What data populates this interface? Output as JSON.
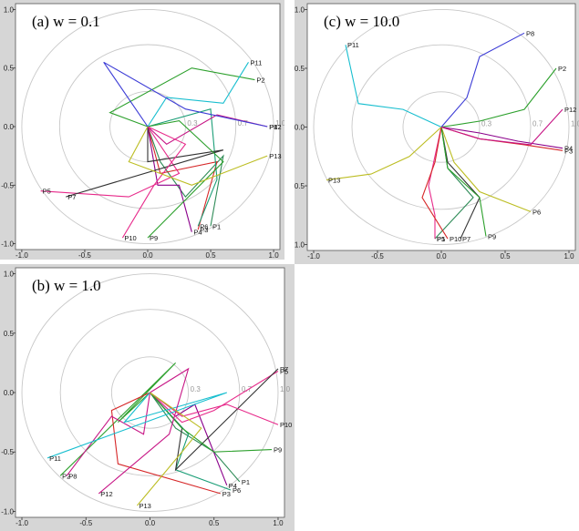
{
  "chart_data": [
    {
      "type": "line",
      "title": "(a) w = 0.1",
      "xticks": [
        "-1.0",
        "-0.5",
        "0.0",
        "0.5",
        "1.0"
      ],
      "yticks": [
        "1.0",
        "0.5",
        "0.0",
        "-0.5",
        "-1.0"
      ],
      "xlim": [
        -1.05,
        1.05
      ],
      "ylim": [
        -1.05,
        1.05
      ],
      "ring_labels": [
        "0.3",
        "0.7",
        "1.0"
      ],
      "ring_radii": [
        0.3,
        0.7,
        1.0
      ],
      "grid": false,
      "series": [
        {
          "label": "P1",
          "color": "#2e8b57",
          "points": [
            [
              0,
              0
            ],
            [
              0.1,
              -0.3
            ],
            [
              0.3,
              -0.6
            ],
            [
              0.6,
              -0.25
            ],
            [
              0.5,
              -0.85
            ]
          ]
        },
        {
          "label": "P2",
          "color": "#2ca02c",
          "points": [
            [
              0,
              0
            ],
            [
              -0.3,
              0.12
            ],
            [
              0.35,
              0.5
            ],
            [
              0.85,
              0.4
            ]
          ]
        },
        {
          "label": "P3",
          "color": "#d62728",
          "points": [
            [
              0,
              0
            ],
            [
              0.1,
              -0.4
            ],
            [
              0.55,
              -0.3
            ],
            [
              0.4,
              -0.88
            ]
          ]
        },
        {
          "label": "P4",
          "color": "#8b008b",
          "points": [
            [
              0,
              0
            ],
            [
              0.08,
              -0.5
            ],
            [
              0.25,
              -0.5
            ],
            [
              0.35,
              -0.9
            ]
          ]
        },
        {
          "label": "P5",
          "color": "#e7298a",
          "points": [
            [
              0,
              0
            ],
            [
              0.25,
              -0.4
            ],
            [
              -0.15,
              -0.6
            ],
            [
              -0.85,
              -0.55
            ]
          ]
        },
        {
          "label": "P6",
          "color": "#1b9e77",
          "points": [
            [
              0,
              0
            ],
            [
              0.5,
              0.15
            ],
            [
              0.55,
              -0.45
            ],
            [
              0.4,
              -0.85
            ]
          ]
        },
        {
          "label": "P7",
          "color": "#333333",
          "points": [
            [
              0,
              0
            ],
            [
              0,
              -0.3
            ],
            [
              0.6,
              -0.2
            ],
            [
              -0.65,
              -0.6
            ]
          ]
        },
        {
          "label": "P8",
          "color": "#c71585",
          "points": [
            [
              0,
              0
            ],
            [
              0.15,
              -0.15
            ],
            [
              0.55,
              0.1
            ],
            [
              0.95,
              0.0
            ]
          ]
        },
        {
          "label": "P9",
          "color": "#2ca02c",
          "points": [
            [
              0,
              0
            ],
            [
              0.25,
              0.05
            ],
            [
              0.6,
              -0.3
            ],
            [
              0.0,
              -0.95
            ]
          ]
        },
        {
          "label": "P10",
          "color": "#e7298a",
          "points": [
            [
              0,
              0
            ],
            [
              0.3,
              -0.15
            ],
            [
              0.05,
              -0.5
            ],
            [
              -0.2,
              -0.95
            ]
          ]
        },
        {
          "label": "P11",
          "color": "#17becf",
          "points": [
            [
              0,
              0
            ],
            [
              0.15,
              0.25
            ],
            [
              0.6,
              0.2
            ],
            [
              0.8,
              0.55
            ]
          ]
        },
        {
          "label": "P12",
          "color": "#3c3cd6",
          "points": [
            [
              0,
              0
            ],
            [
              -0.35,
              0.55
            ],
            [
              0.3,
              0.15
            ],
            [
              0.95,
              0.0
            ]
          ]
        },
        {
          "label": "P13",
          "color": "#bcbd22",
          "points": [
            [
              0,
              0
            ],
            [
              -0.15,
              -0.3
            ],
            [
              0.35,
              -0.5
            ],
            [
              0.95,
              -0.25
            ]
          ]
        }
      ]
    },
    {
      "type": "line",
      "title": "(b) w = 1.0",
      "xticks": [
        "-1.0",
        "-0.5",
        "0.0",
        "0.5",
        "1.0"
      ],
      "yticks": [
        "1.0",
        "0.5",
        "0.0",
        "-0.5",
        "-1.0"
      ],
      "xlim": [
        -1.05,
        1.05
      ],
      "ylim": [
        -1.05,
        1.05
      ],
      "ring_labels": [
        "0.3",
        "0.7",
        "1.0"
      ],
      "ring_radii": [
        0.3,
        0.7,
        1.0
      ],
      "grid": false,
      "series": [
        {
          "label": "P1",
          "color": "#2e8b57",
          "points": [
            [
              0,
              0
            ],
            [
              0.2,
              -0.3
            ],
            [
              0.5,
              -0.5
            ],
            [
              0.7,
              -0.75
            ]
          ]
        },
        {
          "label": "P2",
          "color": "#2ca02c",
          "points": [
            [
              0,
              0
            ],
            [
              -0.25,
              -0.25
            ],
            [
              0.2,
              0.25
            ],
            [
              -0.7,
              -0.7
            ]
          ]
        },
        {
          "label": "P3",
          "color": "#d62728",
          "points": [
            [
              0,
              0
            ],
            [
              -0.3,
              -0.15
            ],
            [
              -0.25,
              -0.6
            ],
            [
              0.55,
              -0.85
            ]
          ]
        },
        {
          "label": "P4",
          "color": "#8b008b",
          "points": [
            [
              0,
              0
            ],
            [
              0.2,
              -0.2
            ],
            [
              0.35,
              -0.1
            ],
            [
              0.6,
              -0.78
            ]
          ]
        },
        {
          "label": "P5",
          "color": "#e7298a",
          "points": [
            [
              0,
              0
            ],
            [
              0.25,
              -0.25
            ],
            [
              0.5,
              -0.15
            ],
            [
              1.0,
              0.18
            ]
          ]
        },
        {
          "label": "P6",
          "color": "#1b9e77",
          "points": [
            [
              0,
              0
            ],
            [
              0.3,
              -0.35
            ],
            [
              0.2,
              -0.65
            ],
            [
              0.63,
              -0.82
            ]
          ]
        },
        {
          "label": "P7",
          "color": "#333333",
          "points": [
            [
              0,
              0
            ],
            [
              0.25,
              -0.3
            ],
            [
              0.2,
              -0.65
            ],
            [
              1.0,
              0.2
            ]
          ]
        },
        {
          "label": "P8",
          "color": "#c71585",
          "points": [
            [
              0,
              0
            ],
            [
              -0.05,
              -0.35
            ],
            [
              -0.3,
              -0.2
            ],
            [
              -0.65,
              -0.7
            ]
          ]
        },
        {
          "label": "P9",
          "color": "#2ca02c",
          "points": [
            [
              0,
              0
            ],
            [
              0.25,
              -0.3
            ],
            [
              0.5,
              -0.5
            ],
            [
              0.95,
              -0.48
            ]
          ]
        },
        {
          "label": "P10",
          "color": "#e7298a",
          "points": [
            [
              0,
              0
            ],
            [
              0.25,
              -0.2
            ],
            [
              0.6,
              -0.1
            ],
            [
              1.0,
              -0.27
            ]
          ]
        },
        {
          "label": "P11",
          "color": "#17becf",
          "points": [
            [
              0,
              0
            ],
            [
              -0.2,
              -0.25
            ],
            [
              0.6,
              0.0
            ],
            [
              -0.8,
              -0.55
            ]
          ]
        },
        {
          "label": "P12",
          "color": "#c71585",
          "points": [
            [
              0,
              0
            ],
            [
              0.3,
              0.2
            ],
            [
              0.15,
              -0.35
            ],
            [
              -0.4,
              -0.85
            ]
          ]
        },
        {
          "label": "P13",
          "color": "#bcbd22",
          "points": [
            [
              0,
              0
            ],
            [
              0.4,
              -0.3
            ],
            [
              0.25,
              -0.5
            ],
            [
              -0.1,
              -0.95
            ]
          ]
        }
      ]
    },
    {
      "type": "line",
      "title": "(c) w = 10.0",
      "xticks": [
        "-1.0",
        "-0.5",
        "0.0",
        "0.5",
        "1.0"
      ],
      "yticks": [
        "1.0",
        "0.5",
        "0.0",
        "-0.5",
        "-1.0"
      ],
      "xlim": [
        -1.05,
        1.05
      ],
      "ylim": [
        -1.05,
        1.05
      ],
      "ring_labels": [
        "0.3",
        "0.7",
        "1.0"
      ],
      "ring_radii": [
        0.3,
        0.7,
        1.0
      ],
      "grid": false,
      "series": [
        {
          "label": "P1",
          "color": "#2e8b57",
          "points": [
            [
              0,
              0
            ],
            [
              0.05,
              -0.35
            ],
            [
              0.25,
              -0.6
            ],
            [
              -0.05,
              -0.95
            ]
          ]
        },
        {
          "label": "P2",
          "color": "#2ca02c",
          "points": [
            [
              0,
              0
            ],
            [
              0.3,
              0.05
            ],
            [
              0.65,
              0.15
            ],
            [
              0.9,
              0.5
            ]
          ]
        },
        {
          "label": "P3",
          "color": "#d62728",
          "points": [
            [
              0,
              0
            ],
            [
              0.3,
              -0.1
            ],
            [
              0.65,
              -0.15
            ],
            [
              0.95,
              -0.2
            ]
          ]
        },
        {
          "label": "P4",
          "color": "#8b008b",
          "points": [
            [
              0,
              0
            ],
            [
              0.3,
              -0.05
            ],
            [
              0.6,
              -0.12
            ],
            [
              0.95,
              -0.18
            ]
          ]
        },
        {
          "label": "P5",
          "color": "#e7298a",
          "points": [
            [
              0,
              0
            ],
            [
              -0.1,
              -0.5
            ],
            [
              -0.05,
              -0.75
            ],
            [
              -0.05,
              -0.95
            ]
          ]
        },
        {
          "label": "P6",
          "color": "#bcbd22",
          "points": [
            [
              0,
              0
            ],
            [
              0.1,
              -0.3
            ],
            [
              0.3,
              -0.55
            ],
            [
              0.7,
              -0.72
            ]
          ]
        },
        {
          "label": "P7",
          "color": "#333333",
          "points": [
            [
              0,
              0
            ],
            [
              0.05,
              -0.3
            ],
            [
              0.3,
              -0.6
            ],
            [
              0.15,
              -0.95
            ]
          ]
        },
        {
          "label": "P8",
          "color": "#3c3cd6",
          "points": [
            [
              0,
              0
            ],
            [
              0.2,
              0.25
            ],
            [
              0.3,
              0.6
            ],
            [
              0.65,
              0.8
            ]
          ]
        },
        {
          "label": "P9",
          "color": "#2ca02c",
          "points": [
            [
              0,
              0
            ],
            [
              0.05,
              -0.35
            ],
            [
              0.3,
              -0.6
            ],
            [
              0.35,
              -0.93
            ]
          ]
        },
        {
          "label": "P10",
          "color": "#d62728",
          "points": [
            [
              0,
              0
            ],
            [
              -0.05,
              -0.3
            ],
            [
              -0.15,
              -0.6
            ],
            [
              0.05,
              -0.95
            ]
          ]
        },
        {
          "label": "P11",
          "color": "#17becf",
          "points": [
            [
              0,
              0
            ],
            [
              -0.3,
              0.15
            ],
            [
              -0.65,
              0.2
            ],
            [
              -0.75,
              0.7
            ]
          ]
        },
        {
          "label": "P12",
          "color": "#c71585",
          "points": [
            [
              0,
              0
            ],
            [
              0.3,
              -0.1
            ],
            [
              0.7,
              -0.15
            ],
            [
              0.95,
              0.15
            ]
          ]
        },
        {
          "label": "P13",
          "color": "#bcbd22",
          "points": [
            [
              0,
              0
            ],
            [
              -0.25,
              -0.25
            ],
            [
              -0.55,
              -0.4
            ],
            [
              -0.9,
              -0.45
            ]
          ]
        }
      ]
    }
  ]
}
